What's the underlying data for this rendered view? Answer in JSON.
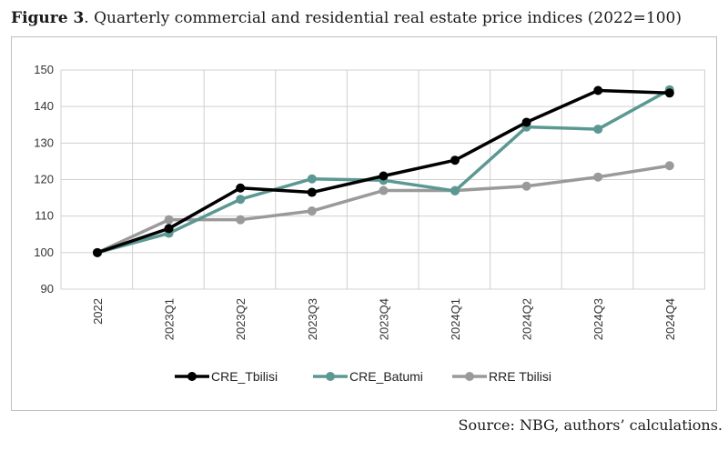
{
  "figure": {
    "label": "Figure 3",
    "caption": ". Quarterly commercial and residential real estate price indices (2022=100)",
    "source": "Source: NBG, authors’ calculations."
  },
  "chart_data": {
    "type": "line",
    "title": "",
    "xlabel": "",
    "ylabel": "",
    "ylim": [
      90,
      150
    ],
    "yticks": [
      90,
      100,
      110,
      120,
      130,
      140,
      150
    ],
    "grid": true,
    "legend_position": "bottom",
    "categories": [
      "2022",
      "2023Q1",
      "2023Q2",
      "2023Q3",
      "2023Q4",
      "2024Q1",
      "2024Q2",
      "2024Q3",
      "2024Q4"
    ],
    "series": [
      {
        "name": "CRE_Tbilisi",
        "color": "#000000",
        "values": [
          100,
          106.6,
          117.7,
          116.5,
          121,
          125.3,
          135.7,
          144.4,
          143.7
        ]
      },
      {
        "name": "CRE_Batumi",
        "color": "#5b9893",
        "values": [
          100,
          105.3,
          114.6,
          120.2,
          119.8,
          116.9,
          134.4,
          133.8,
          144.6
        ]
      },
      {
        "name": "RRE Tbilisi",
        "color": "#9a9a9a",
        "values": [
          100,
          109,
          109,
          111.4,
          117,
          117,
          118.2,
          120.7,
          123.8
        ]
      }
    ]
  }
}
